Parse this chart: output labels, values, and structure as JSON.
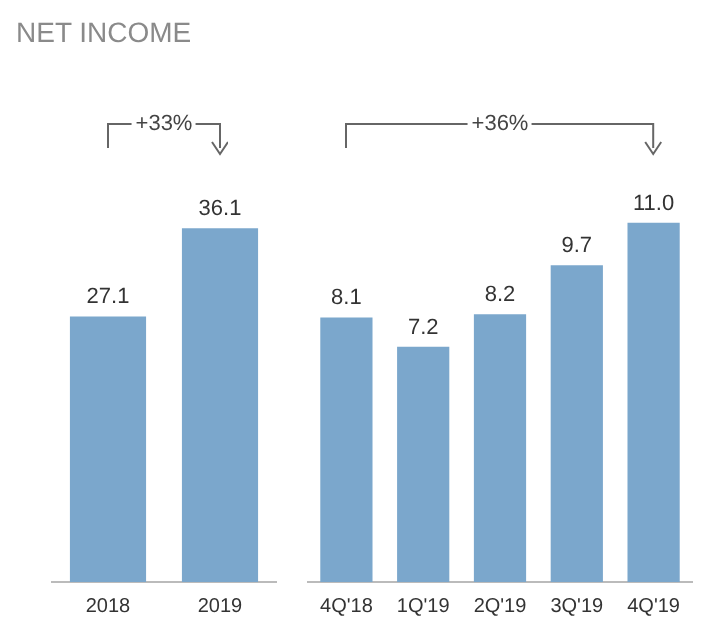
{
  "chart_data": [
    {
      "type": "bar",
      "title": "NET INCOME",
      "categories": [
        "2018",
        "2019"
      ],
      "values": [
        27.1,
        36.1
      ],
      "value_labels": [
        "27.1",
        "36.1"
      ],
      "color": "#7ba7cc",
      "annotations": [
        "+33%"
      ]
    },
    {
      "type": "bar",
      "categories": [
        "4Q'18",
        "1Q'19",
        "2Q'19",
        "3Q'19",
        "4Q'19"
      ],
      "values": [
        8.1,
        7.2,
        8.2,
        9.7,
        11.0
      ],
      "value_labels": [
        "8.1",
        "7.2",
        "8.2",
        "9.7",
        "11.0"
      ],
      "color": "#7ba7cc",
      "annotations": [
        "+36%"
      ]
    }
  ]
}
